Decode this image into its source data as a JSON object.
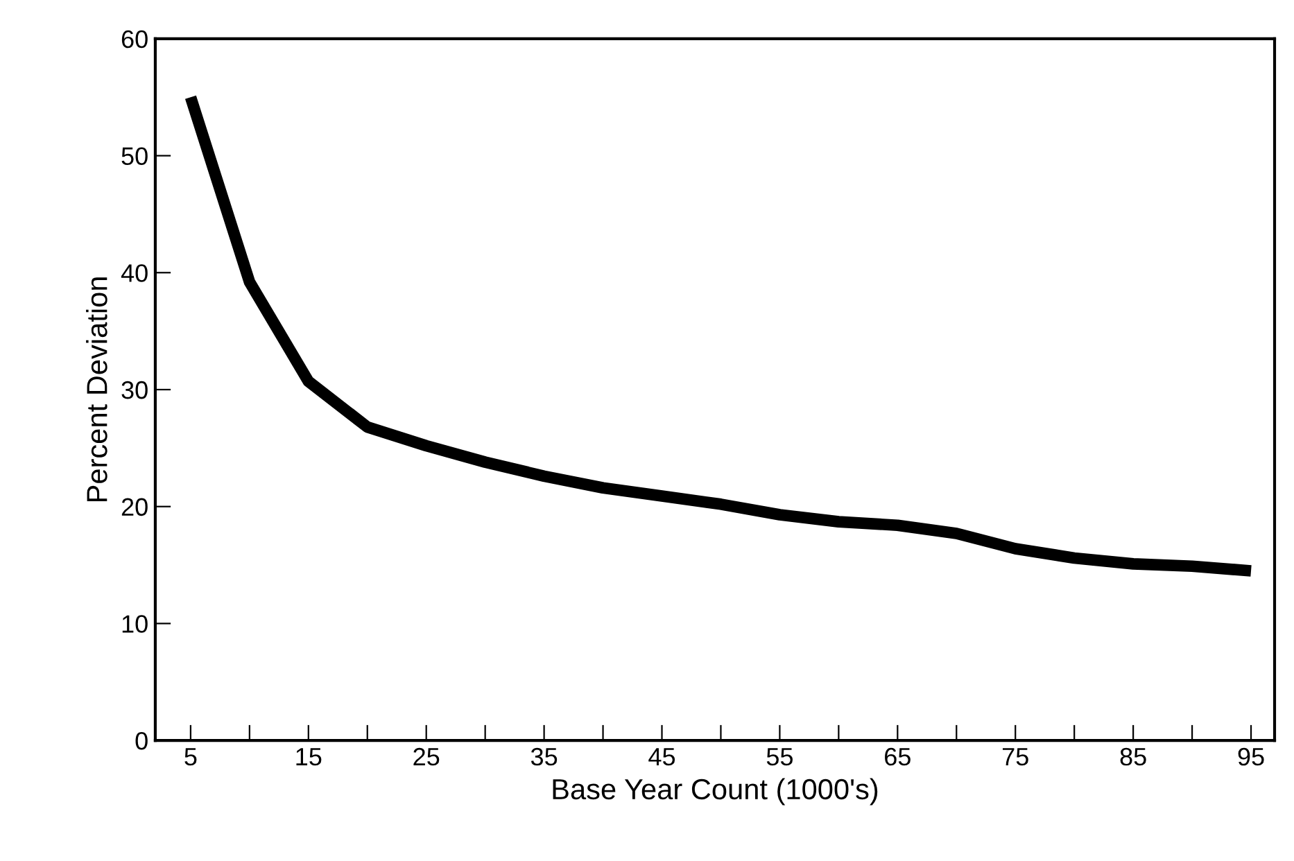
{
  "chart_data": {
    "type": "line",
    "xlabel": "Base Year Count (1000's)",
    "ylabel": "Percent Deviation",
    "x": [
      5,
      10,
      15,
      20,
      25,
      30,
      35,
      40,
      45,
      50,
      55,
      60,
      65,
      70,
      75,
      80,
      85,
      90,
      95
    ],
    "series": [
      {
        "color": "#000000",
        "values": [
          55,
          39.2,
          30.7,
          26.8,
          25.2,
          23.8,
          22.6,
          21.6,
          20.9,
          20.2,
          19.3,
          18.7,
          18.4,
          17.7,
          16.4,
          15.6,
          15.1,
          14.9,
          14.5
        ]
      }
    ],
    "xlim": [
      2,
      97
    ],
    "ylim": [
      0,
      60
    ],
    "xticks": [
      5,
      {
        "value": 10,
        "label": null
      },
      15,
      {
        "value": 20,
        "label": null
      },
      25,
      {
        "value": 30,
        "label": null
      },
      35,
      {
        "value": 40,
        "label": null
      },
      45,
      {
        "value": 50,
        "label": null
      },
      55,
      {
        "value": 60,
        "label": null
      },
      65,
      {
        "value": 70,
        "label": null
      },
      75,
      {
        "value": 80,
        "label": null
      },
      85,
      {
        "value": 90,
        "label": null
      },
      95
    ],
    "yticks": [
      0,
      10,
      20,
      30,
      40,
      50,
      60
    ],
    "grid": false,
    "marker": "none",
    "line_style": "solid",
    "legend": false
  }
}
